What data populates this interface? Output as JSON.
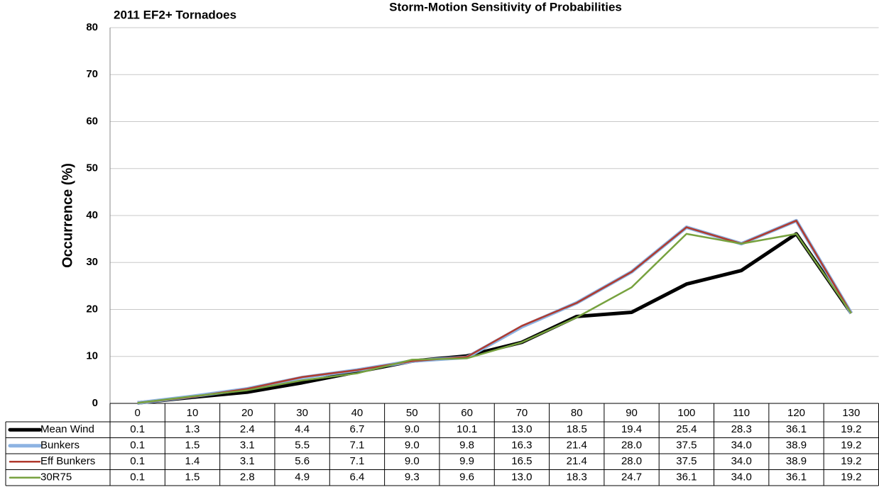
{
  "chart_data": {
    "type": "line",
    "title": "Storm-Motion Sensitivity of Probabilities",
    "subtitle": "2011 EF2+ Tornadoes",
    "y_label": "Occurrence (%)",
    "categories": [
      "0",
      "10",
      "20",
      "30",
      "40",
      "50",
      "60",
      "70",
      "80",
      "90",
      "100",
      "110",
      "120",
      "130"
    ],
    "ylim": [
      0,
      80
    ],
    "yticks": [
      0,
      10,
      20,
      30,
      40,
      50,
      60,
      70,
      80
    ],
    "grid": true,
    "series": [
      {
        "name": "Mean Wind",
        "color": "#000000",
        "width": 5,
        "values": [
          0.1,
          1.3,
          2.4,
          4.4,
          6.7,
          9.0,
          10.1,
          13.0,
          18.5,
          19.4,
          25.4,
          28.3,
          36.1,
          19.2
        ],
        "value_labels": [
          "0.1",
          "1.3",
          "2.4",
          "4.4",
          "6.7",
          "9.0",
          "10.1",
          "13.0",
          "18.5",
          "19.4",
          "25.4",
          "28.3",
          "36.1",
          "19.2"
        ]
      },
      {
        "name": "Bunkers",
        "color": "#8db3e2",
        "width": 5,
        "values": [
          0.1,
          1.5,
          3.1,
          5.5,
          7.1,
          9.0,
          9.8,
          16.3,
          21.4,
          28.0,
          37.5,
          34.0,
          38.9,
          19.2
        ],
        "value_labels": [
          "0.1",
          "1.5",
          "3.1",
          "5.5",
          "7.1",
          "9.0",
          "9.8",
          "16.3",
          "21.4",
          "28.0",
          "37.5",
          "34.0",
          "38.9",
          "19.2"
        ]
      },
      {
        "name": "Eff Bunkers",
        "color": "#b03a2e",
        "width": 2.5,
        "values": [
          0.1,
          1.4,
          3.1,
          5.6,
          7.1,
          9.0,
          9.9,
          16.5,
          21.4,
          28.0,
          37.5,
          34.0,
          38.9,
          19.2
        ],
        "value_labels": [
          "0.1",
          "1.4",
          "3.1",
          "5.6",
          "7.1",
          "9.0",
          "9.9",
          "16.5",
          "21.4",
          "28.0",
          "37.5",
          "34.0",
          "38.9",
          "19.2"
        ]
      },
      {
        "name": "30R75",
        "color": "#77a23f",
        "width": 2.5,
        "values": [
          0.1,
          1.5,
          2.8,
          4.9,
          6.4,
          9.3,
          9.6,
          13.0,
          18.3,
          24.7,
          36.1,
          34.0,
          36.1,
          19.2
        ],
        "value_labels": [
          "0.1",
          "1.5",
          "2.8",
          "4.9",
          "6.4",
          "9.3",
          "9.6",
          "13.0",
          "18.3",
          "24.7",
          "36.1",
          "34.0",
          "36.1",
          "19.2"
        ]
      }
    ]
  }
}
